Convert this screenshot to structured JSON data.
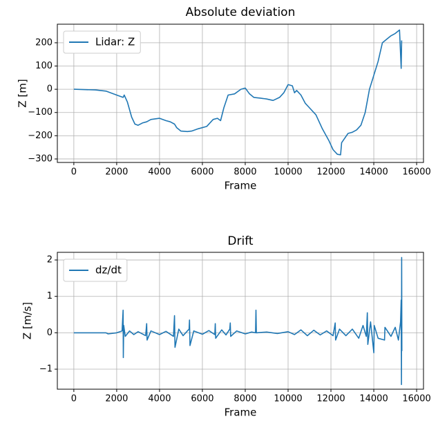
{
  "chart_data": [
    {
      "type": "line",
      "title": "Absolute deviation",
      "xlabel": "Frame",
      "ylabel": "Z [m]",
      "xlim": [
        -770,
        16320
      ],
      "ylim": [
        -315,
        280
      ],
      "xticks": [
        0,
        2000,
        4000,
        6000,
        8000,
        10000,
        12000,
        14000,
        16000
      ],
      "yticks": [
        {
          "value": -300,
          "label": "−300"
        },
        {
          "value": -200,
          "label": "−200"
        },
        {
          "value": -100,
          "label": "−100"
        },
        0,
        100,
        200
      ],
      "grid": true,
      "legend": "upper left",
      "series": [
        {
          "name": "Lidar: Z",
          "color": "#1f77b4",
          "x": [
            0,
            1000,
            1500,
            2000,
            2300,
            2350,
            2500,
            2700,
            2850,
            3000,
            3200,
            3400,
            3600,
            4000,
            4300,
            4500,
            4700,
            4800,
            5000,
            5300,
            5500,
            5800,
            6200,
            6500,
            6700,
            6850,
            7000,
            7200,
            7500,
            7800,
            8000,
            8200,
            8400,
            8700,
            9000,
            9300,
            9600,
            9800,
            10000,
            10200,
            10300,
            10400,
            10600,
            10800,
            11000,
            11300,
            11600,
            11900,
            12100,
            12300,
            12450,
            12500,
            12800,
            13000,
            13200,
            13400,
            13600,
            13800,
            14000,
            14200,
            14400,
            14600,
            14800,
            15000,
            15200,
            15280,
            15300
          ],
          "values": [
            0,
            -3,
            -8,
            -25,
            -35,
            -25,
            -55,
            -120,
            -150,
            -155,
            -145,
            -140,
            -130,
            -125,
            -135,
            -140,
            -150,
            -165,
            -180,
            -182,
            -180,
            -170,
            -160,
            -130,
            -125,
            -135,
            -80,
            -25,
            -20,
            0,
            5,
            -20,
            -35,
            -38,
            -42,
            -48,
            -35,
            -15,
            20,
            15,
            -15,
            -5,
            -25,
            -60,
            -80,
            -110,
            -170,
            -220,
            -260,
            -280,
            -282,
            -230,
            -190,
            -185,
            -175,
            -155,
            -100,
            0,
            60,
            120,
            200,
            215,
            230,
            240,
            255,
            90,
            210
          ]
        }
      ]
    },
    {
      "type": "line",
      "title": "Drift",
      "xlabel": "Frame",
      "ylabel": "Z [m/s]",
      "xlim": [
        -770,
        16320
      ],
      "ylim": [
        -1.55,
        2.21
      ],
      "xticks": [
        0,
        2000,
        4000,
        6000,
        8000,
        10000,
        12000,
        14000,
        16000
      ],
      "yticks": [
        {
          "value": -1,
          "label": "−1"
        },
        0,
        1,
        2
      ],
      "grid": true,
      "legend": "upper left",
      "series": [
        {
          "name": "dz/dt",
          "color": "#1f77b4",
          "x": [
            0,
            1500,
            1600,
            2000,
            2250,
            2300,
            2310,
            2330,
            2400,
            2600,
            2800,
            3000,
            3350,
            3400,
            3420,
            3600,
            4000,
            4300,
            4650,
            4700,
            4720,
            4900,
            5100,
            5380,
            5400,
            5420,
            5600,
            6000,
            6300,
            6580,
            6600,
            6620,
            6900,
            7100,
            7280,
            7300,
            7320,
            7600,
            8000,
            8300,
            8480,
            8500,
            8520,
            9000,
            9500,
            10000,
            10300,
            10600,
            10900,
            11200,
            11500,
            11800,
            12100,
            12200,
            12220,
            12400,
            12700,
            13000,
            13300,
            13500,
            13650,
            13700,
            13720,
            13850,
            14000,
            14020,
            14200,
            14500,
            14520,
            14800,
            15000,
            15150,
            15250,
            15280,
            15290,
            15300,
            15310
          ],
          "values": [
            0,
            0,
            -0.03,
            0,
            0.05,
            0.62,
            -0.68,
            0.2,
            -0.1,
            0.05,
            -0.05,
            0.03,
            -0.08,
            0.25,
            -0.2,
            0.05,
            -0.05,
            0.04,
            -0.1,
            0.47,
            -0.4,
            0.1,
            -0.08,
            0.1,
            0.35,
            -0.35,
            0.05,
            -0.04,
            0.06,
            -0.05,
            0.25,
            -0.15,
            0.08,
            -0.06,
            0.1,
            0.27,
            -0.1,
            0.05,
            -0.03,
            0.02,
            0,
            0.62,
            0,
            0.02,
            -0.02,
            0.03,
            -0.05,
            0.08,
            -0.08,
            0.07,
            -0.06,
            0.05,
            -0.08,
            0.27,
            -0.2,
            0.1,
            -0.08,
            0.1,
            -0.15,
            0.2,
            -0.1,
            0.55,
            -0.32,
            0.3,
            -0.55,
            0.2,
            -0.15,
            -0.2,
            0.15,
            -0.1,
            0.15,
            -0.2,
            0.3,
            0.9,
            -1.42,
            2.07,
            -0.5
          ]
        }
      ]
    }
  ]
}
